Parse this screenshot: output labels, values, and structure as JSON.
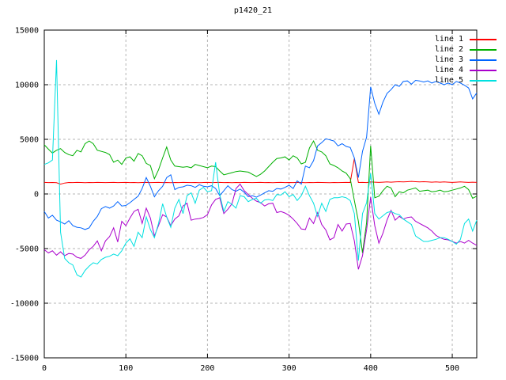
{
  "chart_data": {
    "type": "line",
    "title": "p1420_21",
    "xlabel": "",
    "ylabel": "",
    "xlim": [
      0,
      530
    ],
    "ylim": [
      -15000,
      15000
    ],
    "x_ticks": [
      0,
      100,
      200,
      300,
      400,
      500
    ],
    "y_ticks": [
      -15000,
      -10000,
      -5000,
      0,
      5000,
      10000,
      15000
    ],
    "grid": true,
    "grid_color": "#b4b4b4",
    "border_color": "#000000",
    "background": "#ffffff",
    "legend_position": "top-right",
    "x_step": 5,
    "x_start": 0,
    "series": [
      {
        "name": "line 1",
        "color": "#ff0000",
        "values": [
          1060,
          1040,
          1050,
          1030,
          900,
          1000,
          1050,
          1040,
          1060,
          1050,
          1030,
          1050,
          1040,
          1060,
          1050,
          1040,
          1050,
          1060,
          1040,
          1050,
          1060,
          1040,
          1050,
          1030,
          1050,
          1060,
          1040,
          1050,
          1060,
          1040,
          1050,
          1030,
          1050,
          1040,
          1060,
          1050,
          1040,
          1050,
          1030,
          1050,
          1060,
          1040,
          1050,
          1060,
          1040,
          1050,
          1030,
          1050,
          1040,
          1060,
          1050,
          1040,
          1050,
          1060,
          1040,
          1050,
          1030,
          1050,
          1060,
          1040,
          1050,
          1040,
          1060,
          1050,
          1030,
          1050,
          1040,
          1060,
          1050,
          1040,
          1030,
          1050,
          1040,
          1050,
          1060,
          1050,
          3250,
          1050,
          1060,
          1040,
          1100,
          1080,
          1060,
          1080,
          1100,
          1080,
          1100,
          1120,
          1100,
          1120,
          1150,
          1120,
          1100,
          1120,
          1100,
          1080,
          1100,
          1080,
          1100,
          1080,
          1060,
          1080,
          1100,
          1080,
          1060,
          1080,
          1060
        ]
      },
      {
        "name": "line 2",
        "color": "#00b000",
        "values": [
          4500,
          4100,
          3750,
          4000,
          4150,
          3800,
          3600,
          3500,
          4000,
          3850,
          4600,
          4850,
          4600,
          4000,
          3900,
          3800,
          3600,
          2900,
          3100,
          2700,
          3300,
          3400,
          3000,
          3700,
          3500,
          2800,
          2600,
          1400,
          2200,
          3300,
          4300,
          3100,
          2550,
          2500,
          2450,
          2500,
          2400,
          2700,
          2600,
          2500,
          2400,
          2550,
          2500,
          2100,
          1750,
          1850,
          1950,
          2050,
          2100,
          2050,
          2000,
          1800,
          1600,
          1800,
          2100,
          2500,
          2900,
          3250,
          3300,
          3400,
          3100,
          3500,
          3300,
          2750,
          2900,
          4200,
          4850,
          4000,
          3850,
          3500,
          2750,
          2600,
          2400,
          2100,
          1900,
          1400,
          -600,
          -2500,
          -5400,
          -2600,
          4400,
          -350,
          -200,
          300,
          700,
          550,
          -250,
          200,
          100,
          350,
          450,
          550,
          250,
          300,
          350,
          200,
          250,
          350,
          200,
          250,
          350,
          450,
          550,
          700,
          400,
          -400,
          -200
        ]
      },
      {
        "name": "line 3",
        "color": "#0064ff",
        "values": [
          -1600,
          -2200,
          -1950,
          -2400,
          -2550,
          -2750,
          -2450,
          -2900,
          -3050,
          -3100,
          -3250,
          -3100,
          -2500,
          -2050,
          -1350,
          -1150,
          -1300,
          -1100,
          -700,
          -1100,
          -1050,
          -800,
          -500,
          -200,
          500,
          1500,
          700,
          -250,
          300,
          700,
          1500,
          1750,
          400,
          600,
          650,
          800,
          750,
          600,
          850,
          700,
          650,
          750,
          500,
          -150,
          300,
          750,
          400,
          250,
          450,
          150,
          -250,
          -150,
          -300,
          -100,
          100,
          300,
          250,
          500,
          450,
          600,
          800,
          500,
          1200,
          900,
          2550,
          2400,
          3050,
          4400,
          4700,
          5050,
          4950,
          4850,
          4400,
          4600,
          4350,
          4250,
          3300,
          1500,
          3900,
          5200,
          9800,
          8300,
          7300,
          8400,
          9200,
          9550,
          10000,
          9850,
          10300,
          10350,
          10050,
          10400,
          10350,
          10250,
          10350,
          10150,
          10300,
          10150,
          10000,
          10150,
          10000,
          10300,
          10150,
          9950,
          9700,
          8700,
          9250
        ]
      },
      {
        "name": "line 4",
        "color": "#aa00cc",
        "values": [
          -5100,
          -5400,
          -5200,
          -5600,
          -5300,
          -5650,
          -5450,
          -5500,
          -5800,
          -5900,
          -5600,
          -5100,
          -4800,
          -4300,
          -5200,
          -4300,
          -3900,
          -3100,
          -4400,
          -2500,
          -2900,
          -2200,
          -1600,
          -1400,
          -2700,
          -1300,
          -2200,
          -3850,
          -2900,
          -1900,
          -2100,
          -2900,
          -2300,
          -2000,
          -1100,
          -850,
          -2400,
          -2300,
          -2250,
          -2150,
          -1900,
          -1000,
          -500,
          -350,
          -1800,
          -1400,
          -900,
          500,
          900,
          300,
          -50,
          -400,
          -650,
          -800,
          -1100,
          -900,
          -850,
          -1700,
          -1600,
          -1750,
          -1950,
          -2300,
          -2700,
          -3200,
          -3250,
          -2200,
          -2700,
          -1700,
          -2800,
          -3300,
          -4200,
          -4000,
          -2800,
          -3400,
          -2750,
          -2700,
          -4300,
          -6900,
          -5650,
          -3250,
          -300,
          -2900,
          -4500,
          -3600,
          -2400,
          -1500,
          -2400,
          -2050,
          -2300,
          -2150,
          -2100,
          -2500,
          -2700,
          -2900,
          -3100,
          -3400,
          -3800,
          -4000,
          -4150,
          -4200,
          -4350,
          -4500,
          -4350,
          -4500,
          -4250,
          -4500,
          -4700
        ]
      },
      {
        "name": "line 5",
        "color": "#00e0e0",
        "values": [
          2700,
          2850,
          3100,
          12250,
          -3500,
          -5900,
          -6300,
          -6500,
          -7400,
          -7600,
          -7000,
          -6600,
          -6300,
          -6400,
          -6000,
          -5800,
          -5700,
          -5500,
          -5650,
          -5200,
          -4500,
          -4100,
          -4800,
          -3500,
          -4000,
          -2100,
          -3250,
          -4000,
          -2700,
          -900,
          -2100,
          -3050,
          -1300,
          -500,
          -1800,
          -150,
          100,
          -850,
          350,
          600,
          200,
          300,
          2900,
          -50,
          -1600,
          -700,
          -950,
          -1300,
          -150,
          -250,
          -700,
          -500,
          -400,
          -850,
          -550,
          -500,
          -600,
          -50,
          -100,
          200,
          -250,
          -50,
          -600,
          -150,
          700,
          -150,
          -850,
          -2050,
          -850,
          -1600,
          -500,
          -350,
          -350,
          -250,
          -350,
          -600,
          -1800,
          -6100,
          -1800,
          -800,
          1900,
          -1800,
          -2300,
          -2000,
          -1700,
          -1600,
          -1800,
          -1900,
          -2300,
          -2550,
          -2800,
          -3850,
          -4100,
          -4350,
          -4350,
          -4250,
          -4150,
          -4000,
          -4000,
          -4150,
          -4350,
          -4600,
          -4150,
          -2700,
          -2300,
          -3400,
          -2400
        ]
      }
    ]
  }
}
